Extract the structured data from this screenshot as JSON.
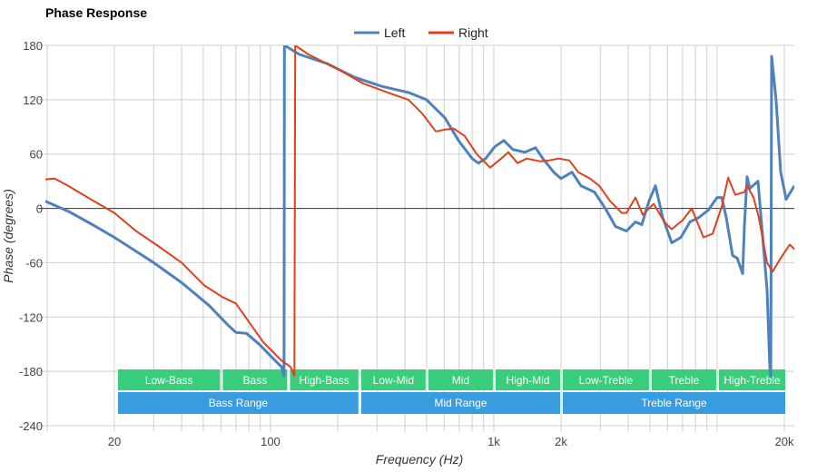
{
  "chart_data": {
    "type": "line",
    "title": "Phase Response",
    "xlabel": "Frequency (Hz)",
    "ylabel": "Phase (degrees)",
    "xscale": "log",
    "xlim": [
      9.8,
      22180
    ],
    "ylim": [
      -240,
      180
    ],
    "yticks": [
      180,
      120,
      60,
      0,
      -60,
      -120,
      -180,
      -240
    ],
    "xticks": [
      {
        "v": 20,
        "label": "20"
      },
      {
        "v": 100,
        "label": "100"
      },
      {
        "v": 1000,
        "label": "1k"
      },
      {
        "v": 2000,
        "label": "2k"
      },
      {
        "v": 20000,
        "label": "20k"
      }
    ],
    "grid": true,
    "legend": "top-center",
    "series": [
      {
        "name": "Left",
        "color": "#4f81bd",
        "points": [
          [
            9.8,
            8
          ],
          [
            12.4,
            -3
          ],
          [
            15.7,
            -17
          ],
          [
            20,
            -32
          ],
          [
            30,
            -60
          ],
          [
            40,
            -82
          ],
          [
            53,
            -107
          ],
          [
            64,
            -128
          ],
          [
            70,
            -137
          ],
          [
            78,
            -138
          ],
          [
            89,
            -150
          ],
          [
            102,
            -165
          ],
          [
            112,
            -175
          ],
          [
            115,
            -185
          ],
          [
            115.5,
            180
          ],
          [
            135,
            170
          ],
          [
            179,
            160
          ],
          [
            237,
            145
          ],
          [
            313,
            135
          ],
          [
            415,
            128
          ],
          [
            500,
            120
          ],
          [
            604,
            100
          ],
          [
            695,
            75
          ],
          [
            800,
            55
          ],
          [
            853,
            50
          ],
          [
            920,
            55
          ],
          [
            1010,
            68
          ],
          [
            1109,
            75
          ],
          [
            1218,
            65
          ],
          [
            1375,
            62
          ],
          [
            1538,
            67
          ],
          [
            1659,
            55
          ],
          [
            1856,
            40
          ],
          [
            2000,
            33
          ],
          [
            2240,
            40
          ],
          [
            2455,
            25
          ],
          [
            2826,
            18
          ],
          [
            3194,
            -2
          ],
          [
            3508,
            -20
          ],
          [
            3926,
            -25
          ],
          [
            4308,
            -15
          ],
          [
            4602,
            -18
          ],
          [
            4956,
            8
          ],
          [
            5296,
            25
          ],
          [
            5706,
            -10
          ],
          [
            6267,
            -38
          ],
          [
            6886,
            -32
          ],
          [
            7556,
            -15
          ],
          [
            8300,
            -10
          ],
          [
            9119,
            -2
          ],
          [
            10000,
            12
          ],
          [
            10490,
            12
          ],
          [
            10990,
            -10
          ],
          [
            11730,
            -52
          ],
          [
            12300,
            -55
          ],
          [
            13010,
            -72
          ],
          [
            13250,
            -20
          ],
          [
            13620,
            35
          ],
          [
            14020,
            22
          ],
          [
            15250,
            30
          ],
          [
            15970,
            -30
          ],
          [
            16740,
            -90
          ],
          [
            17220,
            -175
          ],
          [
            17400,
            -185
          ],
          [
            17540,
            168
          ],
          [
            18370,
            120
          ],
          [
            19270,
            40
          ],
          [
            20380,
            10
          ],
          [
            22180,
            25
          ]
        ]
      },
      {
        "name": "Right",
        "color": "#e0401c",
        "points": [
          [
            9.8,
            32
          ],
          [
            10.8,
            33
          ],
          [
            12.4,
            25
          ],
          [
            15.7,
            10
          ],
          [
            20,
            -5
          ],
          [
            25,
            -25
          ],
          [
            31.6,
            -42
          ],
          [
            40,
            -60
          ],
          [
            50.5,
            -85
          ],
          [
            61,
            -98
          ],
          [
            70,
            -105
          ],
          [
            81,
            -127
          ],
          [
            93,
            -148
          ],
          [
            112,
            -168
          ],
          [
            123,
            -175
          ],
          [
            128,
            -185
          ],
          [
            129,
            180
          ],
          [
            148,
            170
          ],
          [
            196,
            155
          ],
          [
            260,
            138
          ],
          [
            344,
            127
          ],
          [
            415,
            120
          ],
          [
            477,
            105
          ],
          [
            550,
            85
          ],
          [
            604,
            87
          ],
          [
            663,
            88
          ],
          [
            741,
            80
          ],
          [
            838,
            60
          ],
          [
            964,
            45
          ],
          [
            1079,
            55
          ],
          [
            1162,
            62
          ],
          [
            1276,
            50
          ],
          [
            1403,
            55
          ],
          [
            1613,
            52
          ],
          [
            1771,
            53
          ],
          [
            1946,
            55
          ],
          [
            2178,
            53
          ],
          [
            2389,
            40
          ],
          [
            2698,
            33
          ],
          [
            2964,
            25
          ],
          [
            3319,
            8
          ],
          [
            3742,
            -5
          ],
          [
            3926,
            -5
          ],
          [
            4308,
            12
          ],
          [
            4646,
            -7
          ],
          [
            5200,
            5
          ],
          [
            5808,
            -15
          ],
          [
            6267,
            -23
          ],
          [
            7016,
            -13
          ],
          [
            7696,
            0
          ],
          [
            8690,
            -32
          ],
          [
            9550,
            -28
          ],
          [
            10490,
            2
          ],
          [
            11200,
            34
          ],
          [
            12060,
            15
          ],
          [
            13250,
            18
          ],
          [
            13620,
            25
          ],
          [
            14560,
            12
          ],
          [
            15380,
            -10
          ],
          [
            16740,
            -60
          ],
          [
            17710,
            -70
          ],
          [
            19270,
            -55
          ],
          [
            21140,
            -40
          ],
          [
            22180,
            -45
          ]
        ]
      }
    ],
    "bands": [
      {
        "label": "Low-Bass",
        "from": 20,
        "to": 60
      },
      {
        "label": "Bass",
        "from": 60,
        "to": 120
      },
      {
        "label": "High-Bass",
        "from": 120,
        "to": 250
      },
      {
        "label": "Low-Mid",
        "from": 250,
        "to": 500
      },
      {
        "label": "Mid",
        "from": 500,
        "to": 1000
      },
      {
        "label": "High-Mid",
        "from": 1000,
        "to": 2000
      },
      {
        "label": "Low-Treble",
        "from": 2000,
        "to": 5000
      },
      {
        "label": "Treble",
        "from": 5000,
        "to": 10000
      },
      {
        "label": "High-Treble",
        "from": 10000,
        "to": 20000
      }
    ],
    "ranges": [
      {
        "label": "Bass Range",
        "from": 20,
        "to": 250
      },
      {
        "label": "Mid Range",
        "from": 250,
        "to": 2000
      },
      {
        "label": "Treble Range",
        "from": 2000,
        "to": 20000
      }
    ],
    "band_color": "#33cc77",
    "range_color": "#3399dd"
  }
}
